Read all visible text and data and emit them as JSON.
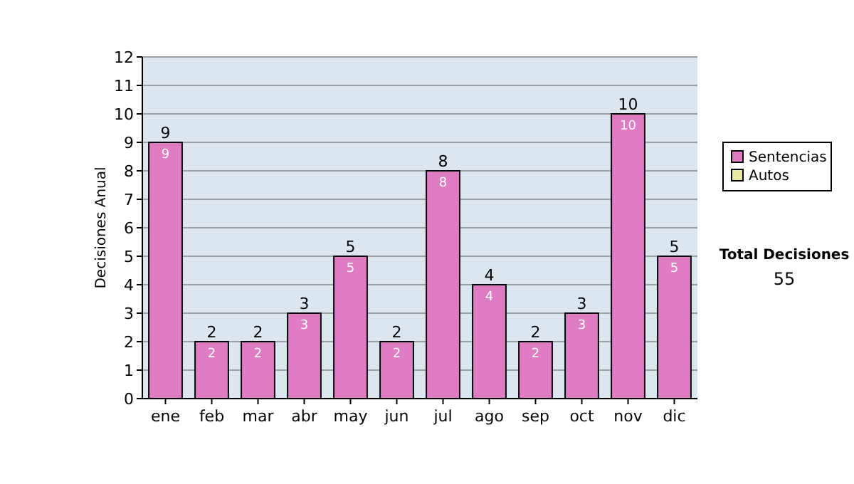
{
  "chart_data": {
    "type": "bar",
    "ylabel": "Decisiones Anual",
    "categories": [
      "ene",
      "feb",
      "mar",
      "abr",
      "may",
      "jun",
      "jul",
      "ago",
      "sep",
      "oct",
      "nov",
      "dic"
    ],
    "series": [
      {
        "name": "Sentencias",
        "color": "#e07cc4",
        "values": [
          9,
          2,
          2,
          3,
          5,
          2,
          8,
          4,
          2,
          3,
          10,
          5
        ],
        "value_labels": [
          "9",
          "2",
          "2",
          "3",
          "5",
          "2",
          "8",
          "4",
          "2",
          "3",
          "10",
          "5"
        ]
      },
      {
        "name": "Autos",
        "color": "#e8e8a0",
        "values": [
          null,
          null,
          null,
          null,
          null,
          null,
          null,
          null,
          null,
          null,
          null,
          null
        ]
      }
    ],
    "ylim": [
      0,
      12
    ],
    "yticks": [
      0,
      1,
      2,
      3,
      4,
      5,
      6,
      7,
      8,
      9,
      10,
      11,
      12
    ],
    "grid": "y",
    "legend": "right",
    "totals": [
      "9",
      "2",
      "2",
      "3",
      "5",
      "2",
      "8",
      "4",
      "2",
      "3",
      "10",
      "5"
    ],
    "annotations": [
      "Total Decisiones",
      "55"
    ]
  }
}
